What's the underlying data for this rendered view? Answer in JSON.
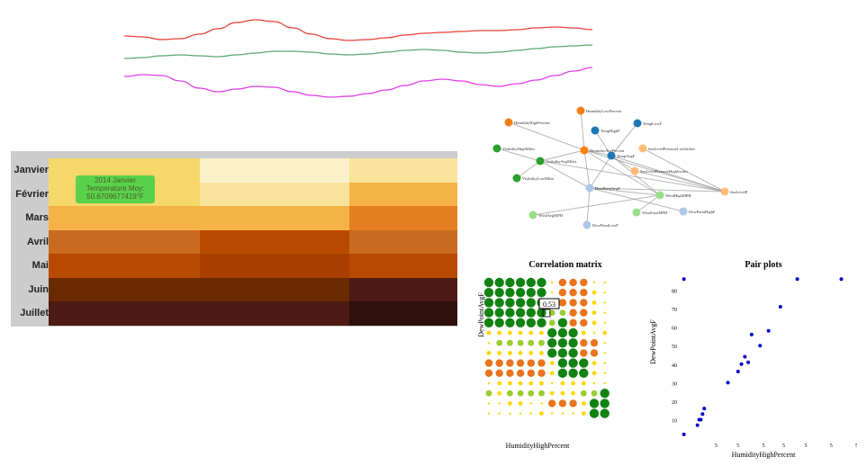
{
  "colors": {
    "line_red": "#e8413a",
    "line_green": "#5aa86e",
    "line_magenta": "#e23ee8",
    "heat_scale": [
      "#fbf0c8",
      "#f8e39a",
      "#f6d86a",
      "#f5b347",
      "#e57e22",
      "#c86a1f",
      "#b84a00",
      "#a83e00",
      "#6a2a00",
      "#4e1a14",
      "#2e100c"
    ],
    "corr_green": "#128212",
    "corr_light_green": "#9acd32",
    "corr_yellow": "#ffd700",
    "corr_orange": "#e8741e",
    "scatter_point": "#0000cc"
  },
  "lines_chart": {
    "series": [
      {
        "name": "red",
        "y": [
          30,
          31,
          34,
          33,
          28,
          22,
          15,
          12,
          14,
          21,
          28,
          33,
          35,
          34,
          32,
          29,
          27,
          26,
          25,
          24,
          24,
          23,
          21,
          20,
          21,
          23
        ]
      },
      {
        "name": "green",
        "y": [
          55,
          54,
          52,
          51,
          52,
          53,
          51,
          49,
          47,
          47,
          48,
          50,
          51,
          50,
          48,
          46,
          45,
          46,
          48,
          49,
          48,
          46,
          44,
          42,
          41,
          40
        ]
      },
      {
        "name": "magenta",
        "y": [
          75,
          73,
          74,
          80,
          88,
          92,
          89,
          86,
          87,
          92,
          96,
          98,
          97,
          94,
          90,
          85,
          80,
          78,
          80,
          84,
          86,
          83,
          79,
          74,
          69,
          65
        ]
      }
    ]
  },
  "heatmap": {
    "months": [
      "Janvier",
      "Février",
      "Mars",
      "Avril",
      "Mai",
      "Juin",
      "Juillet"
    ],
    "columns": 3,
    "values": [
      [
        2,
        0,
        1
      ],
      [
        2,
        1,
        3
      ],
      [
        3,
        3,
        4
      ],
      [
        5,
        6,
        5
      ],
      [
        6,
        7,
        6
      ],
      [
        8,
        8,
        9
      ],
      [
        9,
        9,
        10
      ]
    ],
    "tooltip": {
      "line1": "2014 Janvier",
      "line2": "Temperature Moy:",
      "line3": "50.6709677419°F"
    }
  },
  "network": {
    "nodes": [
      {
        "id": "n1",
        "label": "HumidityLowPercent",
        "color": "#f57f17"
      },
      {
        "id": "n2",
        "label": "HumidityHighPercent",
        "color": "#f57f17"
      },
      {
        "id": "n3",
        "label": "TempHighF",
        "color": "#1f77b4"
      },
      {
        "id": "n4",
        "label": "TempLowF",
        "color": "#1f77b4"
      },
      {
        "id": "n5",
        "label": "HumidityAvgPercent",
        "color": "#ff7f0e"
      },
      {
        "id": "n6",
        "label": "TempAvgF",
        "color": "#1f77b4"
      },
      {
        "id": "n7",
        "label": "VisibilityHighMiles",
        "color": "#2ca02c"
      },
      {
        "id": "n8",
        "label": "VisibilityAvgMiles",
        "color": "#2ca02c"
      },
      {
        "id": "n9",
        "label": "SeaLevelPressureLowInches",
        "color": "#ffbb78"
      },
      {
        "id": "n10",
        "label": "SeaLevelPressureHighInches",
        "color": "#ffbb78"
      },
      {
        "id": "n11",
        "label": "VisibilityLowMiles",
        "color": "#2ca02c"
      },
      {
        "id": "n12",
        "label": "DewPointAvgF",
        "color": "#aec7e8"
      },
      {
        "id": "n13",
        "label": "SeaLevelPressureAvgInches",
        "color": "#ffbb78"
      },
      {
        "id": "n14",
        "label": "WindHighMPH",
        "color": "#98df8a"
      },
      {
        "id": "n15",
        "label": "DewPointHighF",
        "color": "#aec7e8"
      },
      {
        "id": "n16",
        "label": "WindGustMPH",
        "color": "#98df8a"
      },
      {
        "id": "n17",
        "label": "WindAvgMPH",
        "color": "#98df8a"
      },
      {
        "id": "n18",
        "label": "DewPointLowF",
        "color": "#aec7e8"
      }
    ],
    "edges": [
      [
        "n1",
        "n5"
      ],
      [
        "n2",
        "n5"
      ],
      [
        "n3",
        "n6"
      ],
      [
        "n4",
        "n6"
      ],
      [
        "n5",
        "n6"
      ],
      [
        "n5",
        "n8"
      ],
      [
        "n7",
        "n8"
      ],
      [
        "n8",
        "n11"
      ],
      [
        "n5",
        "n12"
      ],
      [
        "n6",
        "n12"
      ],
      [
        "n9",
        "n13"
      ],
      [
        "n10",
        "n13"
      ],
      [
        "n12",
        "n13"
      ],
      [
        "n12",
        "n15"
      ],
      [
        "n12",
        "n18"
      ],
      [
        "n12",
        "n14"
      ],
      [
        "n14",
        "n16"
      ],
      [
        "n14",
        "n17"
      ],
      [
        "n6",
        "n13"
      ],
      [
        "n5",
        "n13"
      ],
      [
        "n8",
        "n12"
      ],
      [
        "n6",
        "n14"
      ],
      [
        "n5",
        "n14"
      ],
      [
        "n8",
        "n13"
      ],
      [
        "n6",
        "n10"
      ]
    ]
  },
  "corr_matrix": {
    "title": "Correlation matrix",
    "xlabel": "HumidityHighPercent",
    "ylabel": "DewPointAvgF",
    "tooltip_value": "0.53",
    "rows": [
      "GGGGGG_OOO__",
      "GGGGGG_OOOy_",
      "GGGGGGLOOOy_",
      "GGGGGGLLOOy_",
      "GGGGGGLGOOy_",
      "yyyyyyGGGy_y",
      "_LLLLLGGGOO_",
      "yyyyyyGGGOO_",
      "OOOOOOyGGGy_",
      "OOOOOOyGGGy_",
      "_yyyyy_yyy__",
      "LyLLLLyyyLLG",
      "__yy__OOOyGG",
      "_____y___yGG"
    ]
  },
  "pair_plot": {
    "title": "Pair plots",
    "xlabel": "HumidityHighPercent",
    "ylabel": "DewPointAvgF",
    "y_ticks": [
      10,
      20,
      30,
      40,
      50,
      60,
      70,
      80
    ],
    "x_ticks": [
      "5",
      "5",
      "5",
      "5",
      "5",
      "5",
      "5"
    ],
    "ylim": [
      0,
      90
    ],
    "xlim": [
      0,
      100
    ],
    "x": [
      3,
      3,
      11,
      12,
      13,
      14,
      15,
      29,
      35,
      37,
      39,
      41,
      43,
      48,
      53,
      60,
      70,
      96
    ],
    "y": [
      86,
      2,
      7,
      10,
      10,
      13,
      16,
      30,
      36,
      40,
      44,
      41,
      56,
      50,
      58,
      71,
      86,
      86
    ]
  }
}
